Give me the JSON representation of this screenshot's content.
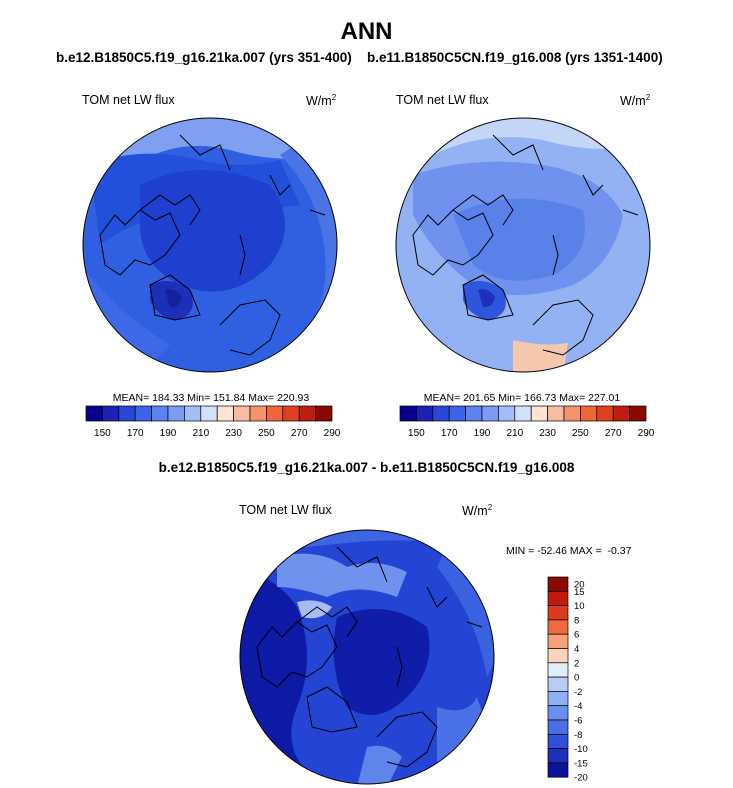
{
  "title": "ANN",
  "panels": [
    {
      "case_title": "b.e12.B1850C5.f19_g16.21ka.007 (yrs 351-400)",
      "variable": "TOM net LW flux",
      "units": "W/m",
      "units_exp": "2",
      "stats": "MEAN= 184.33  Min= 151.84  Max= 220.93"
    },
    {
      "case_title": "b.e11.B1850C5CN.f19_g16.008 (yrs 1351-1400)",
      "variable": "TOM net LW flux",
      "units": "W/m",
      "units_exp": "2",
      "stats": "MEAN= 201.65  Min= 166.73  Max= 227.01"
    }
  ],
  "abs_colorbar": {
    "colors": [
      "#08008a",
      "#1c22b4",
      "#2a46d6",
      "#3c64ea",
      "#5a82f0",
      "#7b9cf2",
      "#a5bdf6",
      "#d3e0f8",
      "#fce3d2",
      "#f8bca0",
      "#f5936b",
      "#ef6639",
      "#e0401e",
      "#c01c10",
      "#8a0a00"
    ],
    "tick_labels": [
      "150",
      "170",
      "190",
      "210",
      "230",
      "250",
      "270",
      "290"
    ]
  },
  "diff": {
    "title": "b.e12.B1850C5.f19_g16.21ka.007 - b.e11.B1850C5CN.f19_g16.008",
    "variable": "TOM net LW flux",
    "units": "W/m",
    "units_exp": "2",
    "stats": "MIN = -52.46 MAX =  -0.37",
    "colorbar": {
      "colors": [
        "#8a0a00",
        "#bf1b0f",
        "#dd3a1c",
        "#ef6a3c",
        "#f6a07a",
        "#fbd2bc",
        "#e3ecf9",
        "#b8cdf5",
        "#8fb0f2",
        "#6990ee",
        "#4a6fe6",
        "#3050d8",
        "#1c30bc",
        "#0c129a"
      ],
      "tick_labels": [
        "20",
        "15",
        "10",
        "8",
        "6",
        "4",
        "2",
        "0",
        "-2",
        "-4",
        "-6",
        "-8",
        "-10",
        "-15",
        "-20"
      ]
    }
  },
  "colors": {
    "left_field": "#2453dd",
    "right_field": "#7095ed",
    "diff_field": "#1c3fd0",
    "coastline": "#000000"
  }
}
